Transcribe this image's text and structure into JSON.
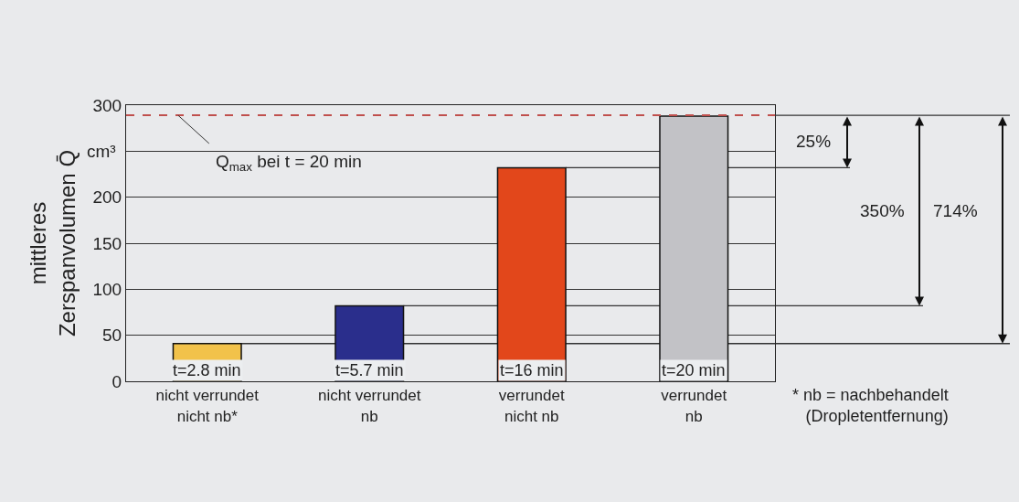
{
  "chart_data": {
    "type": "bar",
    "ylabel": "mittleres\nZerspanvolumen Q̄",
    "categories": [
      "nicht verrundet\nnicht nb*",
      "nicht verrundet\nnb",
      "verrundet\nnicht nb",
      "verrundet\nnb"
    ],
    "values": [
      41,
      82,
      232,
      288
    ],
    "colors": [
      "#f2c24a",
      "#2a2e8c",
      "#e2471b",
      "#c2c2c6"
    ],
    "ylim": [
      0,
      300
    ],
    "yticks": [
      0,
      50,
      100,
      150,
      200,
      {
        "value": 250,
        "label": null
      },
      300
    ],
    "grid": "y",
    "ref_lines": [
      {
        "axis": "y",
        "value": 289,
        "color": "#c0504d",
        "line_style": "dashed"
      },
      {
        "axis": "y",
        "value": 232,
        "color": "#333333"
      },
      {
        "axis": "y",
        "value": 82,
        "color": "#333333"
      },
      {
        "axis": "y",
        "value": 41,
        "color": "#333333"
      }
    ],
    "annotations": [
      "cm³",
      {
        "text": "Q$_{max}$ bei t = 20 min",
        "y": 289
      },
      "t=2.8 min",
      "t=5.7 min",
      "t=16 min",
      "t=20 min",
      "25%",
      "350%",
      "714%",
      "* nb = nachbehandelt\n (Dropletentfernung)"
    ]
  }
}
